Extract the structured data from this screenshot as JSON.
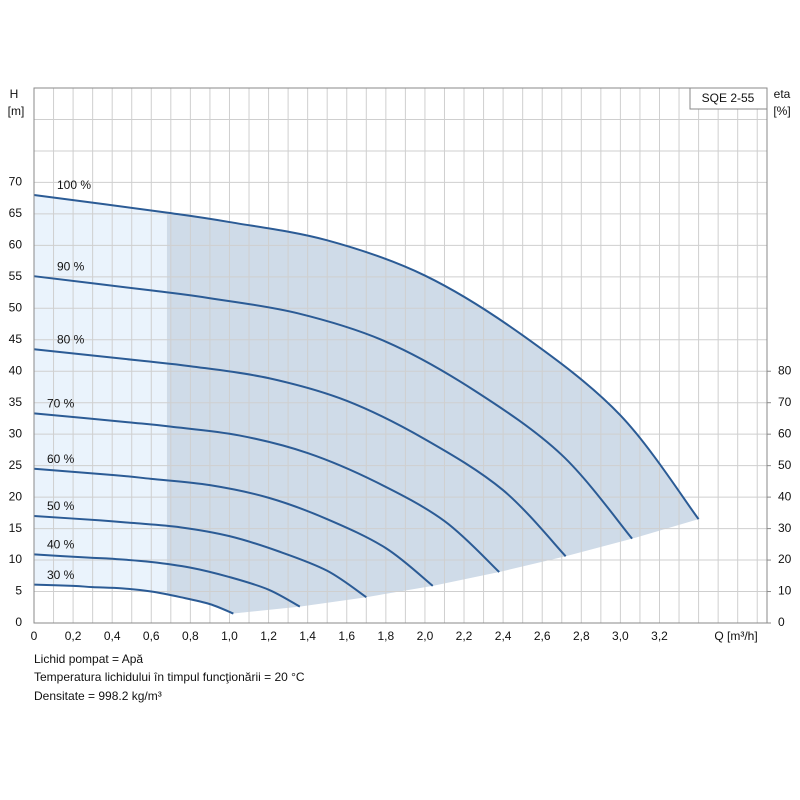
{
  "chart_data": {
    "type": "line",
    "model_label": "SQE 2-55",
    "y_label": "H",
    "y_unit": "[m]",
    "y2_label": "eta",
    "y2_unit": "[%]",
    "x_label": "Q [m³/h]",
    "notes": [
      "Lichid pompat = Apă",
      "Temperatura lichidului în timpul funcţionării = 20 °C",
      "Densitate = 998.2 kg/m³"
    ],
    "xlim": [
      0,
      3.75
    ],
    "ylim": [
      0,
      85
    ],
    "y2lim": [
      0,
      170
    ],
    "xticks": [
      0,
      {
        "value": 0.2,
        "label": "0,2"
      },
      {
        "value": 0.4,
        "label": "0,4"
      },
      {
        "value": 0.6,
        "label": "0,6"
      },
      {
        "value": 0.8,
        "label": "0,8"
      },
      {
        "value": 1.0,
        "label": "1,0"
      },
      {
        "value": 1.2,
        "label": "1,2"
      },
      {
        "value": 1.4,
        "label": "1,4"
      },
      {
        "value": 1.6,
        "label": "1,6"
      },
      {
        "value": 1.8,
        "label": "1,8"
      },
      {
        "value": 2.0,
        "label": "2,0"
      },
      {
        "value": 2.2,
        "label": "2,2"
      },
      {
        "value": 2.4,
        "label": "2,4"
      },
      {
        "value": 2.6,
        "label": "2,6"
      },
      {
        "value": 2.8,
        "label": "2,8"
      },
      {
        "value": 3.0,
        "label": "3,0"
      },
      {
        "value": 3.2,
        "label": "3,2"
      }
    ],
    "yticks": [
      0,
      5,
      10,
      15,
      20,
      25,
      30,
      35,
      40,
      45,
      50,
      55,
      60,
      65,
      70
    ],
    "y2ticks": [
      0,
      10,
      20,
      30,
      40,
      50,
      60,
      70,
      80
    ],
    "grid": true,
    "curve_color": "#2b5b95",
    "area_color": "#cfdbe8",
    "low_flow_area_color": "#eaf3fc",
    "series": [
      {
        "name": "100 %",
        "x": [
          0,
          0.68,
          1.0,
          1.5,
          2.0,
          2.5,
          3.0,
          3.4
        ],
        "values": [
          68,
          65.2,
          63.7,
          60.8,
          55.2,
          45.7,
          33,
          16.5
        ]
      },
      {
        "name": "90 %",
        "x": [
          0,
          0.61,
          0.9,
          1.35,
          1.8,
          2.25,
          2.7,
          3.06
        ],
        "values": [
          55.1,
          52.8,
          51.6,
          49.2,
          44.7,
          37.0,
          26.7,
          13.4
        ]
      },
      {
        "name": "80 %",
        "x": [
          0,
          0.54,
          0.8,
          1.2,
          1.6,
          2.0,
          2.4,
          2.72
        ],
        "values": [
          43.5,
          41.7,
          40.8,
          38.9,
          35.3,
          29.2,
          21.1,
          10.6
        ]
      },
      {
        "name": "70 %",
        "x": [
          0,
          0.48,
          0.7,
          1.05,
          1.4,
          1.75,
          2.1,
          2.38
        ],
        "values": [
          33.3,
          31.9,
          31.2,
          29.8,
          27.0,
          22.4,
          16.2,
          8.1
        ]
      },
      {
        "name": "60 %",
        "x": [
          0,
          0.41,
          0.6,
          0.9,
          1.2,
          1.5,
          1.8,
          2.04
        ],
        "values": [
          24.5,
          23.5,
          22.9,
          21.9,
          19.9,
          16.5,
          11.9,
          5.9
        ]
      },
      {
        "name": "50 %",
        "x": [
          0,
          0.34,
          0.5,
          0.75,
          1.0,
          1.25,
          1.5,
          1.7
        ],
        "values": [
          17,
          16.3,
          15.9,
          15.2,
          13.8,
          11.4,
          8.3,
          4.1
        ]
      },
      {
        "name": "40 %",
        "x": [
          0,
          0.27,
          0.4,
          0.6,
          0.8,
          1.0,
          1.2,
          1.36
        ],
        "values": [
          10.9,
          10.4,
          10.2,
          9.7,
          8.8,
          7.3,
          5.3,
          2.6
        ]
      },
      {
        "name": "30 %",
        "x": [
          0,
          0.2,
          0.3,
          0.45,
          0.6,
          0.75,
          0.9,
          1.02
        ],
        "values": [
          6.1,
          5.9,
          5.7,
          5.5,
          5.0,
          4.1,
          3.0,
          1.5
        ]
      }
    ]
  }
}
